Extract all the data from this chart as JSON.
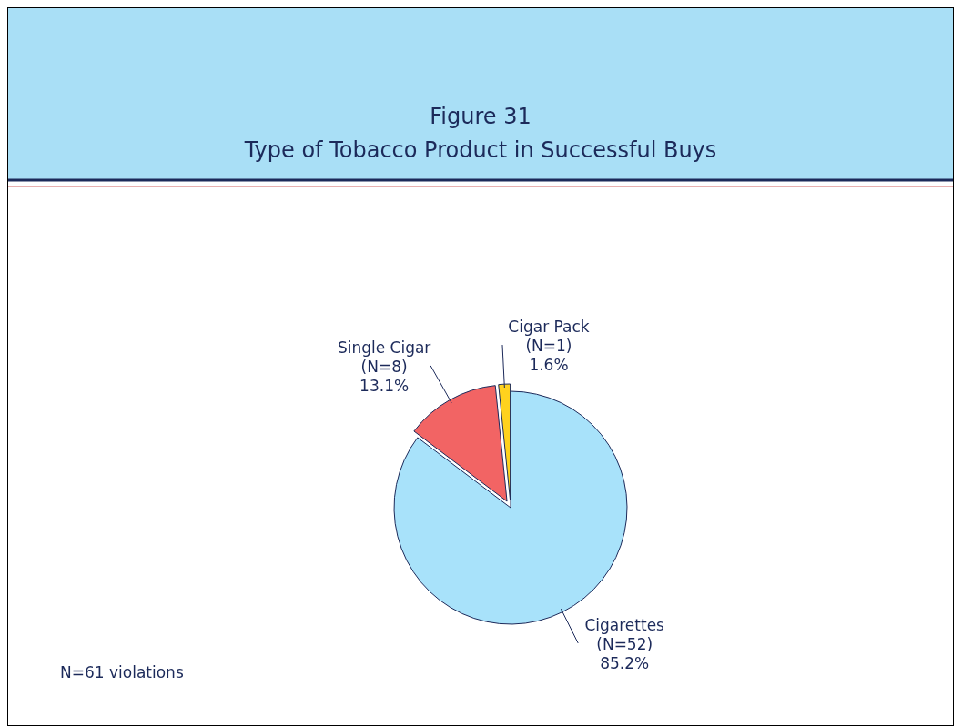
{
  "chart_data": {
    "type": "pie",
    "title": "Figure 31",
    "subtitle": "Type of Tobacco Product in Successful Buys",
    "categories": [
      "Cigarettes",
      "Single Cigar",
      "Cigar Pack"
    ],
    "values": [
      85.2,
      13.1,
      1.6
    ],
    "value_labels": [
      "(N=52) 85.2%",
      "(N=8) 13.1%",
      "(N=1) 1.6%"
    ],
    "colors": [
      "#a8e2fa",
      "#f26464",
      "#ffd21e"
    ],
    "annotations": [
      "N=61 violations"
    ]
  }
}
